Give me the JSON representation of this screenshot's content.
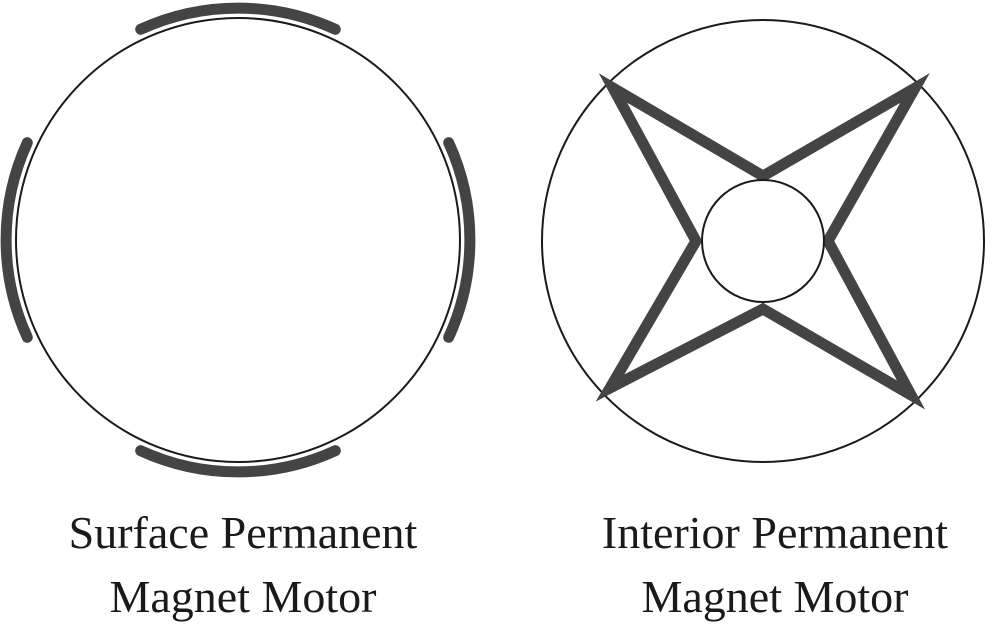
{
  "colors": {
    "outline": "#1a1a1a",
    "magnet": "#444444",
    "background": "#ffffff"
  },
  "motors": [
    {
      "type": "surface",
      "caption_line1": "Surface Permanent",
      "caption_line2": "Magnet Motor",
      "magnet_count": 4
    },
    {
      "type": "interior",
      "caption_line1": "Interior Permanent",
      "caption_line2": "Magnet Motor",
      "magnet_count": 4
    }
  ]
}
